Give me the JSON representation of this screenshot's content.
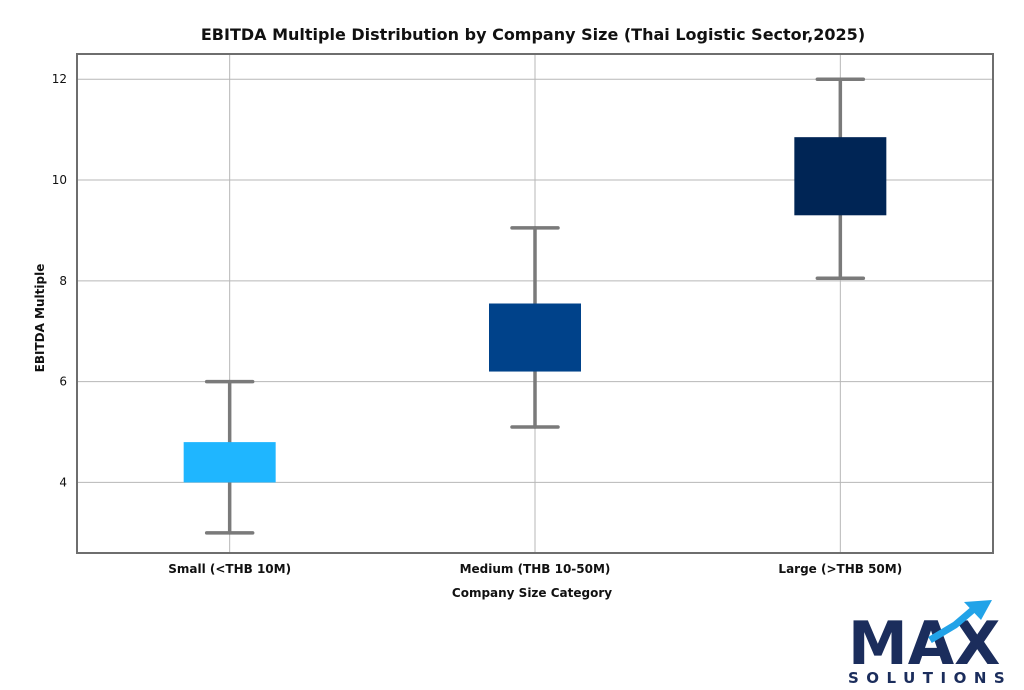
{
  "chart_data": {
    "type": "box",
    "title": "EBITDA Multiple Distribution by Company Size (Thai Logistic Sector,2025)",
    "xlabel": "Company Size Category",
    "ylabel": "EBITDA Multiple",
    "categories": [
      "Small (<THB 10M)",
      "Medium (THB 10-50M)",
      "Large (>THB 50M)"
    ],
    "boxes": [
      {
        "category": "Small (<THB 10M)",
        "min": 3.0,
        "q1": 4.0,
        "q3": 4.8,
        "max": 6.0,
        "color": "#1fb6ff"
      },
      {
        "category": "Medium (THB 10-50M)",
        "min": 5.1,
        "q1": 6.2,
        "q3": 7.55,
        "max": 9.05,
        "color": "#00428a"
      },
      {
        "category": "Large (>THB 50M)",
        "min": 8.05,
        "q1": 9.3,
        "q3": 10.85,
        "max": 12.0,
        "color": "#002555"
      }
    ],
    "yticks": [
      4,
      6,
      8,
      10,
      12
    ],
    "ylim": [
      2.6,
      12.5
    ],
    "grid": true
  },
  "logo": {
    "name": "MAX",
    "tagline": "SOLUTIONS",
    "color_dark": "#1b2d5c",
    "color_accent": "#22a3e8"
  }
}
